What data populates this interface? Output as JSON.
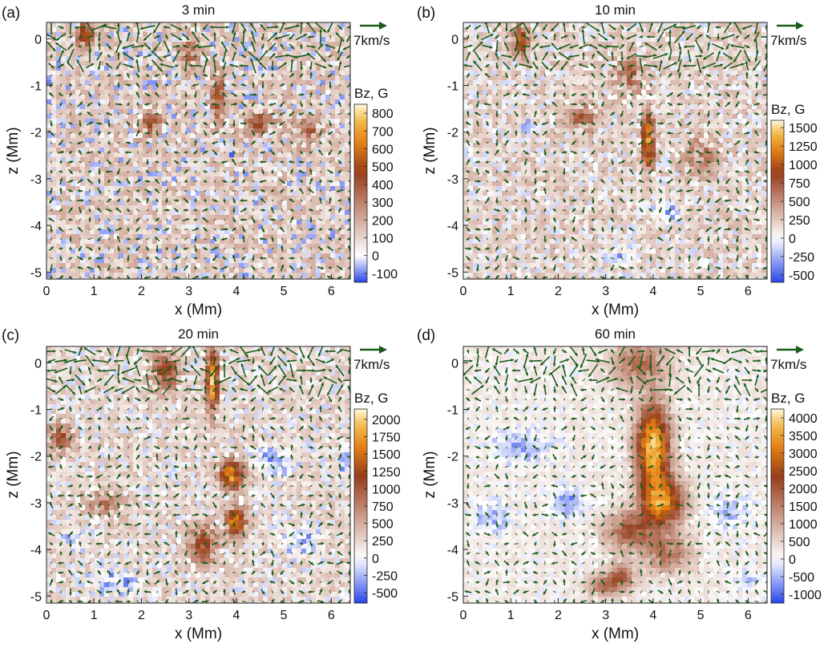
{
  "chart_data": [
    {
      "type": "heatmap",
      "panel_label": "(a)",
      "title": "3 min",
      "xlabel": "x (Mm)",
      "ylabel": "z (Mm)",
      "xlim": [
        0,
        6.4
      ],
      "ylim": [
        -5.15,
        0.35
      ],
      "x_ticks": [
        "0",
        "1",
        "2",
        "3",
        "4",
        "5",
        "6"
      ],
      "y_ticks": [
        "0",
        "-1",
        "-2",
        "-3",
        "-4",
        "-5"
      ],
      "colorbar_title": "Bz, G",
      "colorbar_ticks": [
        "800",
        "700",
        "600",
        "500",
        "400",
        "300",
        "200",
        "100",
        "0",
        "-100"
      ],
      "colorbar_range": [
        -150,
        850
      ],
      "vector_scale_label": "7km/s",
      "vector_color": "#1a5c1a",
      "features": [
        {
          "x": 0.8,
          "z": 0.1,
          "bz": 400,
          "sx": 0.18,
          "sz": 0.3
        },
        {
          "x": 3.6,
          "z": -1.3,
          "bz": 380,
          "sx": 0.15,
          "sz": 0.5
        },
        {
          "x": 3.0,
          "z": -0.3,
          "bz": 300,
          "sx": 0.2,
          "sz": 0.3
        },
        {
          "x": 2.2,
          "z": -1.8,
          "bz": 300,
          "sx": 0.2,
          "sz": 0.3
        },
        {
          "x": 4.5,
          "z": -1.8,
          "bz": 280,
          "sx": 0.3,
          "sz": 0.25
        },
        {
          "x": 5.5,
          "z": -2.0,
          "bz": 260,
          "sx": 0.3,
          "sz": 0.3
        },
        {
          "x": 0.1,
          "z": -0.8,
          "bz": -100,
          "sx": 0.08,
          "sz": 0.2
        },
        {
          "x": 1.2,
          "z": -1.4,
          "bz": -90,
          "sx": 0.1,
          "sz": 0.15
        },
        {
          "x": 3.9,
          "z": -2.4,
          "bz": -80,
          "sx": 0.08,
          "sz": 0.15
        },
        {
          "x": 2.4,
          "z": -4.3,
          "bz": -100,
          "sx": 0.08,
          "sz": 0.12
        },
        {
          "x": 2.6,
          "z": -0.2,
          "bz": -90,
          "sx": 0.1,
          "sz": 0.2
        }
      ],
      "background_bz": 150
    },
    {
      "type": "heatmap",
      "panel_label": "(b)",
      "title": "10 min",
      "xlabel": "x (Mm)",
      "ylabel": "z (Mm)",
      "xlim": [
        0,
        6.4
      ],
      "ylim": [
        -5.15,
        0.35
      ],
      "x_ticks": [
        "0",
        "1",
        "2",
        "3",
        "4",
        "5",
        "6"
      ],
      "y_ticks": [
        "0",
        "-1",
        "-2",
        "-3",
        "-4",
        "-5"
      ],
      "colorbar_title": "Bz, G",
      "colorbar_ticks": [
        "1500",
        "1250",
        "1000",
        "750",
        "500",
        "250",
        "0",
        "-250",
        "-500"
      ],
      "colorbar_range": [
        -600,
        1600
      ],
      "vector_scale_label": "7km/s",
      "vector_color": "#1a5c1a",
      "features": [
        {
          "x": 1.2,
          "z": 0.0,
          "bz": 900,
          "sx": 0.15,
          "sz": 0.35
        },
        {
          "x": 3.9,
          "z": -2.2,
          "bz": 1200,
          "sx": 0.12,
          "sz": 0.6
        },
        {
          "x": 3.5,
          "z": -0.8,
          "bz": 500,
          "sx": 0.3,
          "sz": 0.4
        },
        {
          "x": 2.5,
          "z": -1.7,
          "bz": 500,
          "sx": 0.3,
          "sz": 0.3
        },
        {
          "x": 5.0,
          "z": -2.5,
          "bz": 400,
          "sx": 0.35,
          "sz": 0.4
        },
        {
          "x": 1.4,
          "z": -1.9,
          "bz": -400,
          "sx": 0.2,
          "sz": 0.15
        },
        {
          "x": 3.3,
          "z": -4.7,
          "bz": -350,
          "sx": 0.3,
          "sz": 0.2
        },
        {
          "x": 4.3,
          "z": -3.7,
          "bz": -300,
          "sx": 0.3,
          "sz": 0.25
        }
      ],
      "background_bz": 250
    },
    {
      "type": "heatmap",
      "panel_label": "(c)",
      "title": "20 min",
      "xlabel": "x (Mm)",
      "ylabel": "z (Mm)",
      "xlim": [
        0,
        6.4
      ],
      "ylim": [
        -5.15,
        0.35
      ],
      "x_ticks": [
        "0",
        "1",
        "2",
        "3",
        "4",
        "5",
        "6"
      ],
      "y_ticks": [
        "0",
        "-1",
        "-2",
        "-3",
        "-4",
        "-5"
      ],
      "colorbar_title": "Bz, G",
      "colorbar_ticks": [
        "2000",
        "1750",
        "1500",
        "1250",
        "1000",
        "750",
        "500",
        "250",
        "0",
        "-250",
        "-500"
      ],
      "colorbar_range": [
        -650,
        2150
      ],
      "vector_scale_label": "7km/s",
      "vector_color": "#1a5c1a",
      "features": [
        {
          "x": 3.5,
          "z": -0.4,
          "bz": 1800,
          "sx": 0.12,
          "sz": 0.6
        },
        {
          "x": 3.9,
          "z": -2.4,
          "bz": 1600,
          "sx": 0.25,
          "sz": 0.3
        },
        {
          "x": 4.0,
          "z": -3.4,
          "bz": 1500,
          "sx": 0.2,
          "sz": 0.3
        },
        {
          "x": 2.5,
          "z": -0.2,
          "bz": 900,
          "sx": 0.3,
          "sz": 0.4
        },
        {
          "x": 0.3,
          "z": -1.6,
          "bz": 900,
          "sx": 0.25,
          "sz": 0.3
        },
        {
          "x": 3.3,
          "z": -3.9,
          "bz": 1000,
          "sx": 0.3,
          "sz": 0.4
        },
        {
          "x": 1.2,
          "z": -3.0,
          "bz": 600,
          "sx": 0.35,
          "sz": 0.3
        },
        {
          "x": 4.8,
          "z": -2.1,
          "bz": -500,
          "sx": 0.4,
          "sz": 0.3
        },
        {
          "x": 6.3,
          "z": -2.1,
          "bz": -600,
          "sx": 0.12,
          "sz": 0.25
        },
        {
          "x": 5.3,
          "z": -3.8,
          "bz": -400,
          "sx": 0.4,
          "sz": 0.3
        },
        {
          "x": 1.4,
          "z": -4.7,
          "bz": -400,
          "sx": 0.5,
          "sz": 0.25
        },
        {
          "x": 0.6,
          "z": -3.8,
          "bz": -350,
          "sx": 0.2,
          "sz": 0.2
        }
      ],
      "background_bz": 300
    },
    {
      "type": "heatmap",
      "panel_label": "(d)",
      "title": "60 min",
      "xlabel": "x (Mm)",
      "ylabel": "z (Mm)",
      "xlim": [
        0,
        6.4
      ],
      "ylim": [
        -5.15,
        0.35
      ],
      "x_ticks": [
        "0",
        "1",
        "2",
        "3",
        "4",
        "5",
        "6"
      ],
      "y_ticks": [
        "0",
        "-1",
        "-2",
        "-3",
        "-4",
        "-5"
      ],
      "colorbar_title": "Bz, G",
      "colorbar_ticks": [
        "4000",
        "3500",
        "3000",
        "2500",
        "2000",
        "1500",
        "1000",
        "500",
        "0",
        "-500",
        "-1000"
      ],
      "colorbar_range": [
        -1250,
        4250
      ],
      "vector_scale_label": "7km/s",
      "vector_color": "#1a5c1a",
      "features": [
        {
          "x": 3.7,
          "z": 0.0,
          "bz": 1500,
          "sx": 0.6,
          "sz": 0.5
        },
        {
          "x": 4.0,
          "z": -1.8,
          "bz": 3800,
          "sx": 0.35,
          "sz": 0.9
        },
        {
          "x": 4.2,
          "z": -3.0,
          "bz": 3000,
          "sx": 0.45,
          "sz": 0.5
        },
        {
          "x": 3.5,
          "z": -3.6,
          "bz": 1800,
          "sx": 0.5,
          "sz": 0.4
        },
        {
          "x": 4.3,
          "z": -4.1,
          "bz": 1500,
          "sx": 0.5,
          "sz": 0.4
        },
        {
          "x": 3.3,
          "z": -4.6,
          "bz": 1800,
          "sx": 0.3,
          "sz": 0.3
        },
        {
          "x": 2.9,
          "z": -4.8,
          "bz": 1200,
          "sx": 0.3,
          "sz": 0.25
        },
        {
          "x": 1.2,
          "z": -1.8,
          "bz": -700,
          "sx": 0.6,
          "sz": 0.35
        },
        {
          "x": 2.2,
          "z": -3.0,
          "bz": -900,
          "sx": 0.35,
          "sz": 0.3
        },
        {
          "x": 0.6,
          "z": -3.3,
          "bz": -700,
          "sx": 0.35,
          "sz": 0.3
        },
        {
          "x": 5.6,
          "z": -3.2,
          "bz": -600,
          "sx": 0.4,
          "sz": 0.3
        },
        {
          "x": 6.0,
          "z": -4.7,
          "bz": -500,
          "sx": 0.3,
          "sz": 0.2
        }
      ],
      "background_bz": 300
    }
  ]
}
